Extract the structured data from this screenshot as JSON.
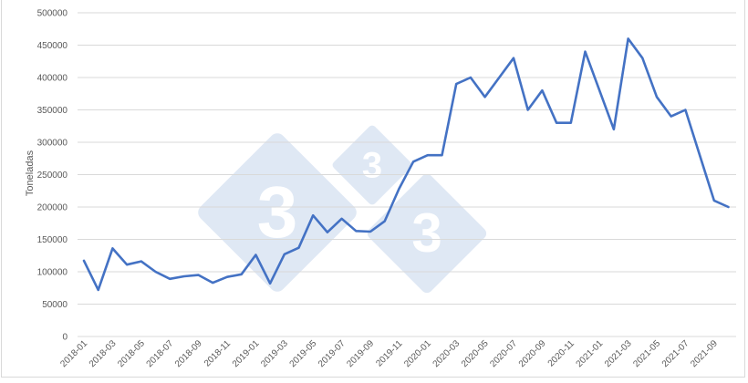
{
  "chart_data": {
    "type": "line",
    "title": "",
    "xlabel": "",
    "ylabel": "Toneladas",
    "ylim": [
      0,
      500000
    ],
    "yticks": [
      0,
      50000,
      100000,
      150000,
      200000,
      250000,
      300000,
      350000,
      400000,
      450000,
      500000
    ],
    "grid": true,
    "legend": "none",
    "line_color": "#4472c4",
    "tick_labels_shown": [
      "2018-01",
      "2018-03",
      "2018-05",
      "2018-07",
      "2018-09",
      "2018-11",
      "2019-01",
      "2019-03",
      "2019-05",
      "2019-07",
      "2019-09",
      "2019-11",
      "2020-01",
      "2020-03",
      "2020-05",
      "2020-07",
      "2020-09",
      "2020-11",
      "2021-01",
      "2021-03",
      "2021-05",
      "2021-07",
      "2021-09"
    ],
    "x": [
      "2018-01",
      "2018-02",
      "2018-03",
      "2018-04",
      "2018-05",
      "2018-06",
      "2018-07",
      "2018-08",
      "2018-09",
      "2018-10",
      "2018-11",
      "2018-12",
      "2019-01",
      "2019-02",
      "2019-03",
      "2019-04",
      "2019-05",
      "2019-06",
      "2019-07",
      "2019-08",
      "2019-09",
      "2019-10",
      "2019-11",
      "2019-12",
      "2020-01",
      "2020-02",
      "2020-03",
      "2020-04",
      "2020-05",
      "2020-06",
      "2020-07",
      "2020-08",
      "2020-09",
      "2020-10",
      "2020-11",
      "2020-12",
      "2021-01",
      "2021-02",
      "2021-03",
      "2021-04",
      "2021-05",
      "2021-06",
      "2021-07",
      "2021-08",
      "2021-09",
      "2021-10"
    ],
    "series": [
      {
        "name": "Toneladas",
        "values": [
          117000,
          72000,
          136000,
          111000,
          116000,
          100000,
          89000,
          93000,
          95000,
          83000,
          92000,
          96000,
          126000,
          82000,
          127000,
          137000,
          187000,
          161000,
          182000,
          163000,
          162000,
          178000,
          228000,
          270000,
          280000,
          280000,
          390000,
          400000,
          370000,
          400000,
          430000,
          350000,
          380000,
          330000,
          330000,
          440000,
          380000,
          320000,
          460000,
          430000,
          370000,
          340000,
          350000,
          280000,
          210000,
          200000
        ]
      }
    ]
  },
  "watermark": {
    "glyph": "3",
    "color": "#dfe8f4"
  }
}
